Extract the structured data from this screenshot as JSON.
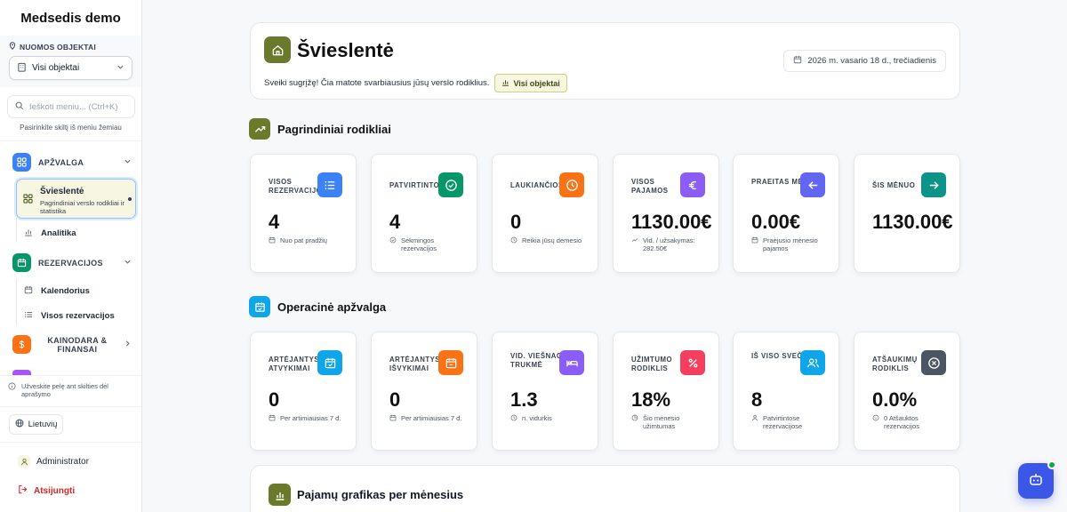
{
  "sidebar": {
    "brand": "Medsedis demo",
    "rentals_label": "NUOMOS OBJEKTAI",
    "object_select": "Visi objektai",
    "search_placeholder": "Ieškoti meniu... (Ctrl+K)",
    "hint": "Pasirinkite skiltį iš meniu žemiau",
    "sections": [
      {
        "label": "APŽVALGA",
        "color": "#3b82f6"
      },
      {
        "label": "REZERVACIJOS",
        "color": "#059669"
      },
      {
        "label": "KAINODARA & FINANSAI",
        "color": "#f97316"
      }
    ],
    "active": {
      "title": "Švieslentė",
      "desc": "Pagrindiniai verslo rodikliai ir statistika"
    },
    "items": {
      "analytics": "Analitika",
      "calendar": "Kalendorius",
      "all_reservations": "Visos rezervacijos"
    },
    "tip": "Užveskite pelę ant skilties dėl aprašymo",
    "language": "Lietuvių",
    "user": "Administrator",
    "logout": "Atsijungti"
  },
  "header": {
    "title": "Švieslentė",
    "welcome": "Sveiki sugrįžę! Čia matote svarbiausius jūsų verslo rodiklius.",
    "badge": "Visi objektai",
    "date": "2026 m. vasario 18 d., trečiadienis"
  },
  "section1": {
    "title": "Pagrindiniai rodikliai"
  },
  "kpis_main": [
    {
      "label": "VISOS REZERVACIJOS",
      "value": "4",
      "sub": "Nuo pat pradžių",
      "color": "#3b82f6",
      "icon": "list-icon",
      "sub_icon": "calendar-icon"
    },
    {
      "label": "PATVIRTINTOS",
      "value": "4",
      "sub": "Sėkmingos rezervacijos",
      "color": "#059669",
      "icon": "check-circle-icon",
      "sub_icon": "check-icon"
    },
    {
      "label": "LAUKIANČIOS",
      "value": "0",
      "sub": "Reikia jūsų dėmesio",
      "color": "#f97316",
      "icon": "clock-icon",
      "sub_icon": "clock-icon"
    },
    {
      "label": "VISOS PAJAMOS",
      "value": "1130.00€",
      "sub": "Vid. / užsakymas: 282.50€",
      "color": "#8b5cf6",
      "icon": "euro-icon",
      "sub_icon": "trend-icon"
    },
    {
      "label": "PRAEITAS MĖN.",
      "value": "0.00€",
      "sub": "Praėjusio mėnesio pajamos",
      "color": "#6366f1",
      "icon": "arrow-left-icon",
      "sub_icon": "calendar-icon"
    },
    {
      "label": "ŠIS MĖNUO",
      "value": "1130.00€",
      "sub": "",
      "color": "#0d9488",
      "icon": "arrow-right-icon",
      "sub_icon": ""
    }
  ],
  "section2": {
    "title": "Operacinė apžvalga"
  },
  "kpis_ops": [
    {
      "label": "ARTĖJANTYS ATVYKIMAI",
      "value": "0",
      "sub": "Per artimiausias 7 d.",
      "color": "#0ea5e9",
      "icon": "calendar-check-icon",
      "sub_icon": "calendar-icon"
    },
    {
      "label": "ARTĖJANTYS IŠVYKIMAI",
      "value": "0",
      "sub": "Per artimiausias 7 d.",
      "color": "#f97316",
      "icon": "calendar-out-icon",
      "sub_icon": "calendar-icon"
    },
    {
      "label": "VID. VIEŠNAGĖS TRUKMĖ",
      "value": "1.3",
      "sub": "n. vidurkis",
      "color": "#8b5cf6",
      "icon": "bed-icon",
      "sub_icon": "clock-icon"
    },
    {
      "label": "UŽIMTUMO RODIKLIS",
      "value": "18%",
      "sub": "Šio mėnesio užimtumas",
      "color": "#f43f5e",
      "icon": "percent-icon",
      "sub_icon": "pie-icon"
    },
    {
      "label": "IŠ VISO SVEČIŲ",
      "value": "8",
      "sub": "Patvirtintose rezervacijose",
      "color": "#0ea5e9",
      "icon": "users-icon",
      "sub_icon": "person-icon"
    },
    {
      "label": "ATŠAUKIMŲ RODIKLIS",
      "value": "0.0%",
      "sub": "0 Atšauktos rezervacijos",
      "color": "#4b5563",
      "icon": "x-circle-icon",
      "sub_icon": "info-icon"
    }
  ],
  "section3": {
    "title": "Pajamų grafikas per mėnesius"
  }
}
